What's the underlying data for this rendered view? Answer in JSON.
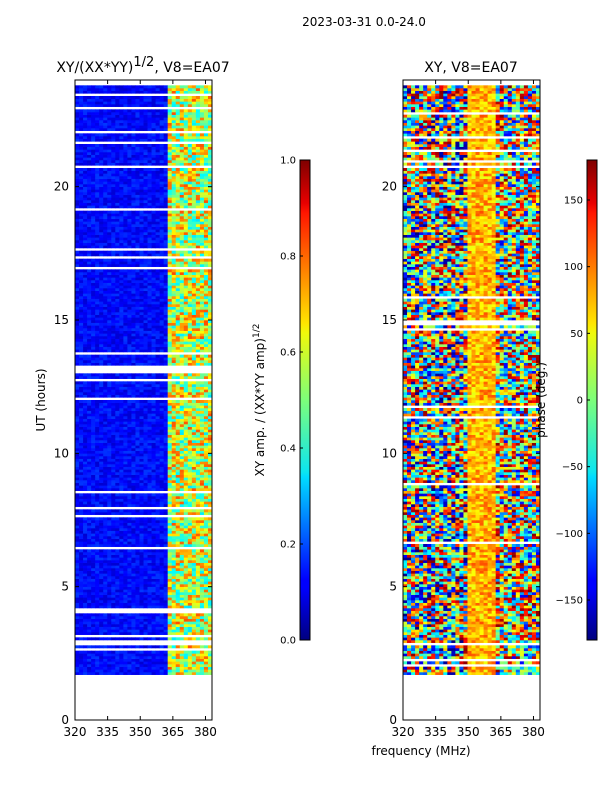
{
  "figure_title": "2023-03-31 0.0-24.0",
  "shared_xlabel": "frequency (MHz)",
  "chart_data": [
    {
      "type": "heatmap",
      "title": "XY/(XX*YY)^1/2, V8=EA07",
      "xlabel": "",
      "ylabel": "UT (hours)",
      "xlim": [
        320,
        383
      ],
      "ylim": [
        0,
        24
      ],
      "xticks": [
        "320",
        "335",
        "350",
        "365",
        "380"
      ],
      "yticks": [
        "0",
        "5",
        "10",
        "15",
        "20"
      ],
      "data_ut_range": [
        1.7,
        23.8
      ],
      "colorbar": {
        "label": "XY amp. / (XX*YY amp)^1/2",
        "range": [
          0.0,
          1.0
        ],
        "ticks": [
          "0.0",
          "0.2",
          "0.4",
          "0.6",
          "0.8",
          "1.0"
        ],
        "colormap": "jet"
      }
    },
    {
      "type": "heatmap",
      "title": "XY, V8=EA07",
      "xlabel": "frequency (MHz)",
      "ylabel": "",
      "xlim": [
        320,
        383
      ],
      "ylim": [
        0,
        24
      ],
      "xticks": [
        "320",
        "335",
        "350",
        "365",
        "380"
      ],
      "yticks": [
        "0",
        "5",
        "10",
        "15",
        "20"
      ],
      "data_ut_range": [
        1.7,
        23.8
      ],
      "colorbar": {
        "label": "phase (deg.)",
        "range": [
          -180,
          180
        ],
        "ticks": [
          "−150",
          "−100",
          "−50",
          "0",
          "50",
          "100",
          "150"
        ],
        "colormap": "jet"
      }
    }
  ]
}
